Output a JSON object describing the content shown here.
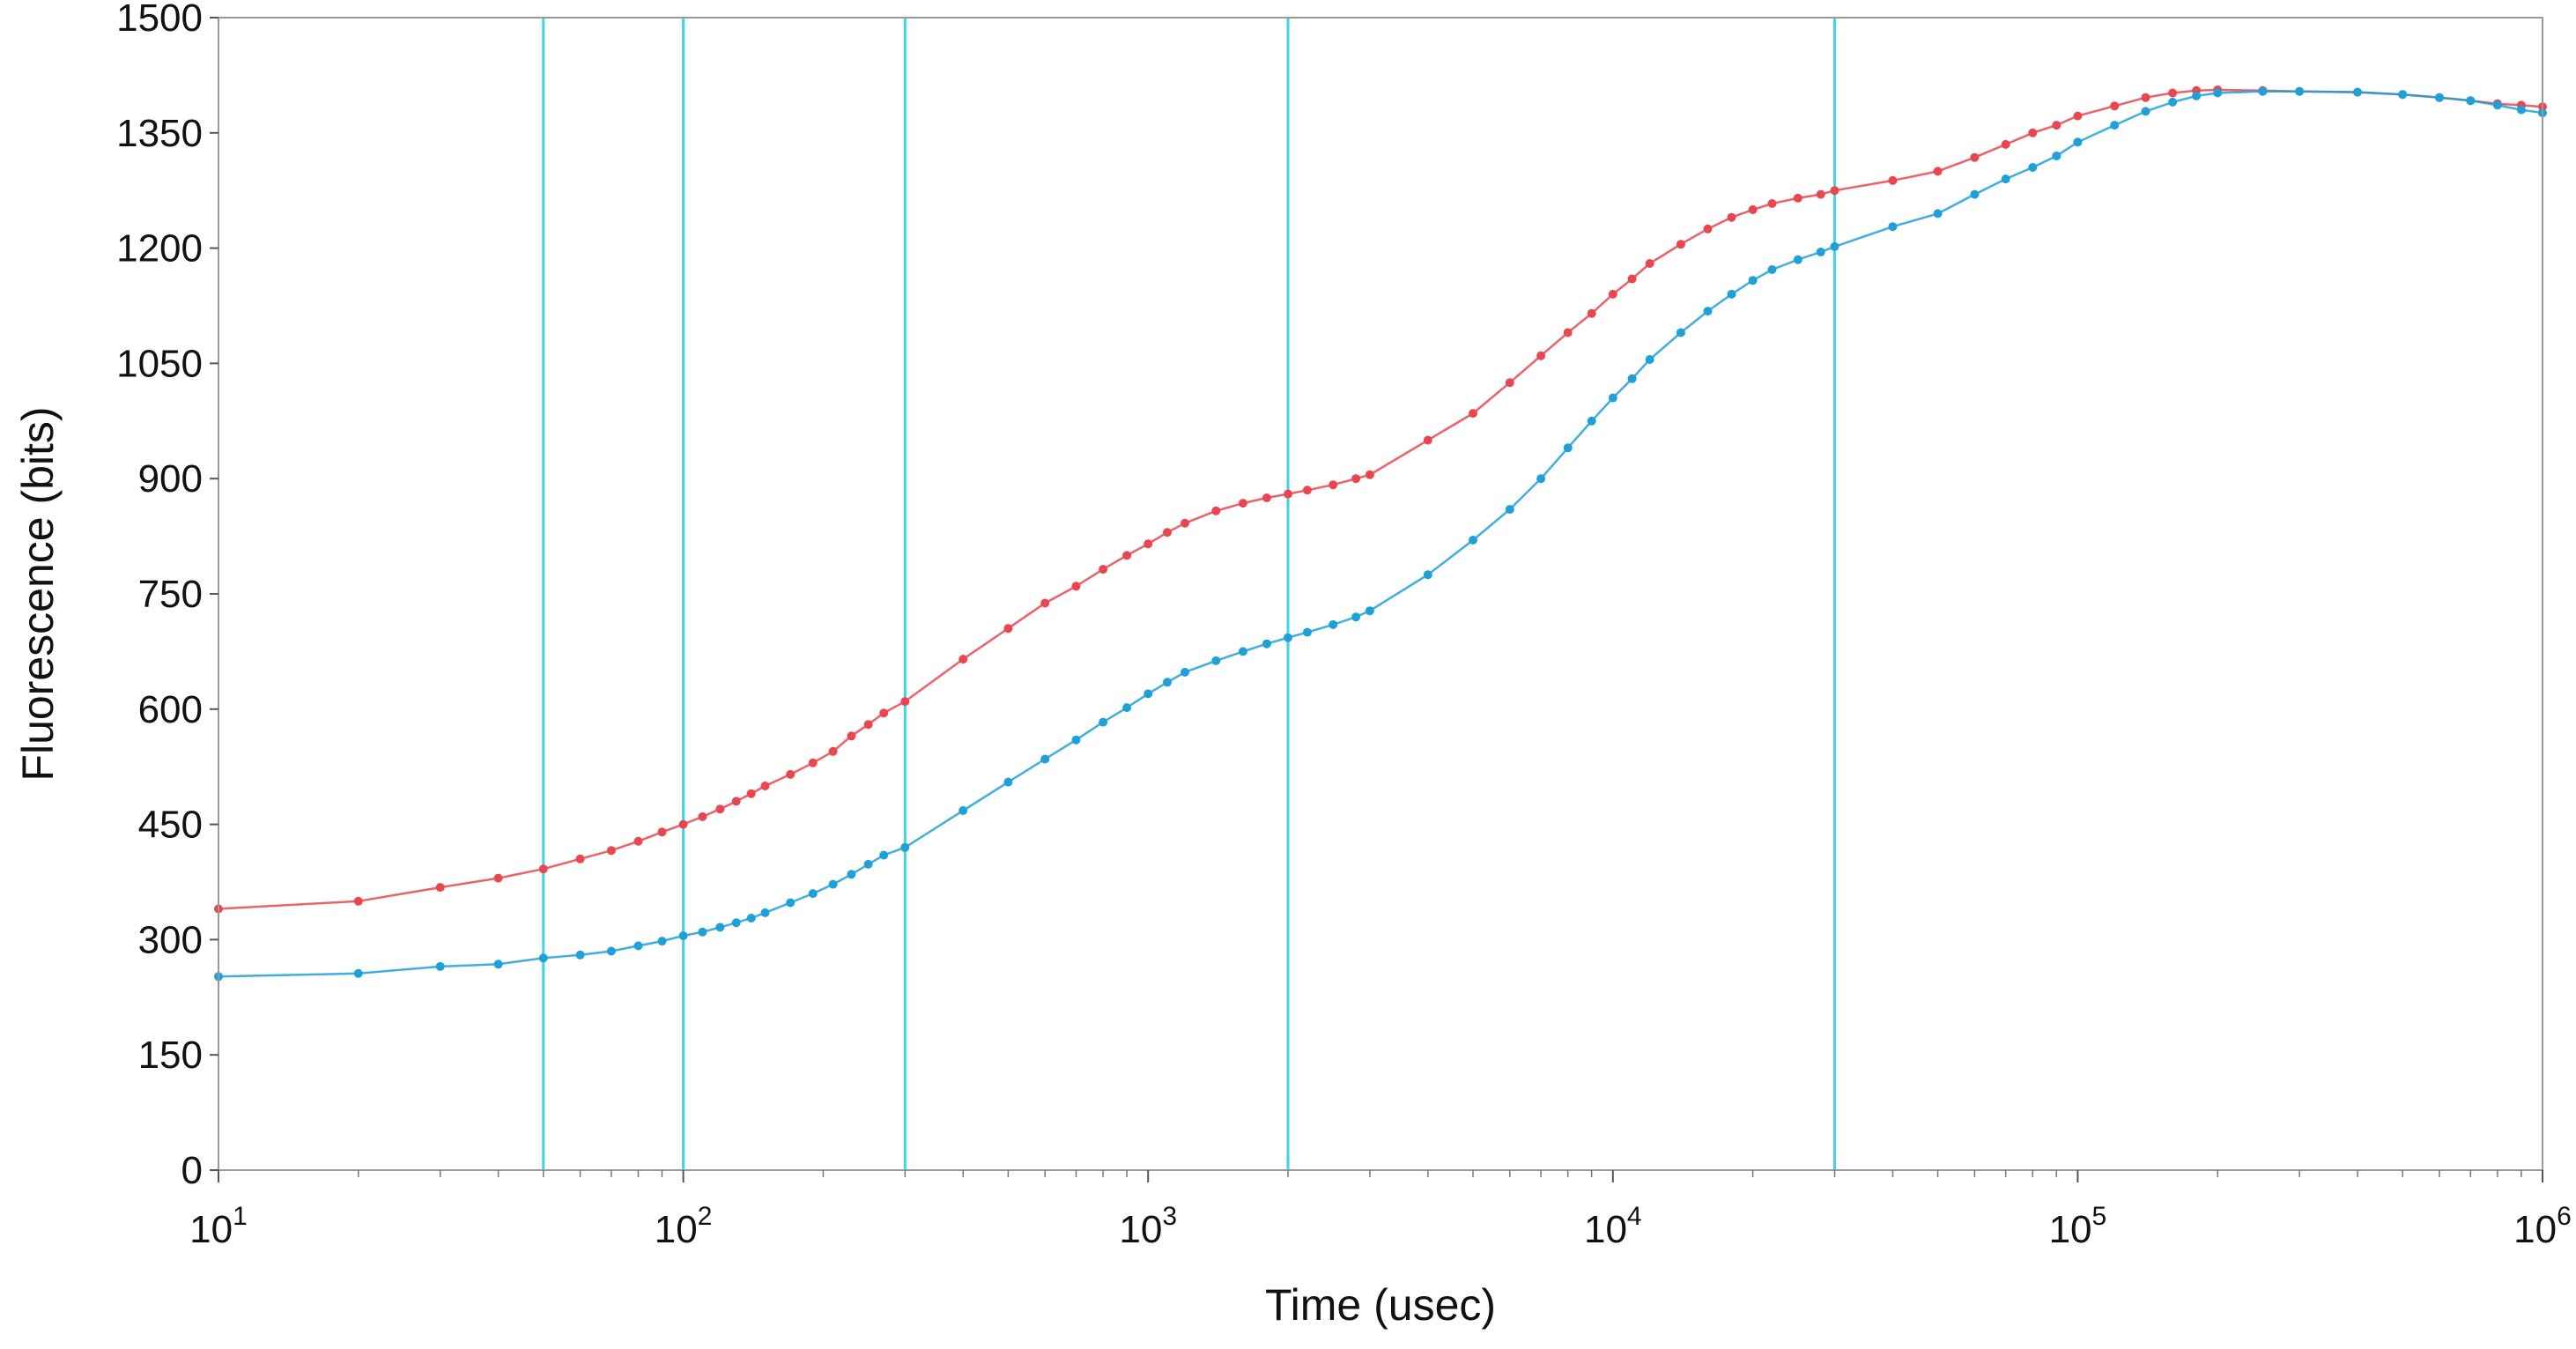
{
  "chart_data": {
    "type": "line",
    "xlabel": "Time (usec)",
    "ylabel": "Fluorescence (bits)",
    "x_scale": "log",
    "xlim": [
      10,
      1000000
    ],
    "ylim": [
      0,
      1500
    ],
    "x_ticks": [
      {
        "value": 10,
        "base": "10",
        "exp": "1"
      },
      {
        "value": 100,
        "base": "10",
        "exp": "2"
      },
      {
        "value": 1000,
        "base": "10",
        "exp": "3"
      },
      {
        "value": 10000,
        "base": "10",
        "exp": "4"
      },
      {
        "value": 100000,
        "base": "10",
        "exp": "5"
      },
      {
        "value": 1000000,
        "base": "10",
        "exp": "6"
      }
    ],
    "y_ticks": [
      "0",
      "150",
      "300",
      "450",
      "600",
      "750",
      "900",
      "1050",
      "1200",
      "1350",
      "1500"
    ],
    "grid": false,
    "vertical_markers": [
      50,
      100,
      300,
      2000,
      30000
    ],
    "colors": {
      "red": "#e8474f",
      "blue": "#1ea0d8",
      "markers": "#3fd4e8",
      "frame": "#999999"
    },
    "series": [
      {
        "color": "#e8474f",
        "x": [
          10,
          20,
          30,
          40,
          50,
          60,
          70,
          80,
          90,
          100,
          110,
          120,
          130,
          140,
          150,
          170,
          190,
          210,
          230,
          250,
          270,
          300,
          400,
          500,
          600,
          700,
          800,
          900,
          1000,
          1100,
          1200,
          1400,
          1600,
          1800,
          2000,
          2200,
          2500,
          2800,
          3000,
          4000,
          5000,
          6000,
          7000,
          8000,
          9000,
          10000,
          11000,
          12000,
          14000,
          16000,
          18000,
          20000,
          22000,
          25000,
          28000,
          30000,
          40000,
          50000,
          60000,
          70000,
          80000,
          90000,
          100000,
          120000,
          140000,
          160000,
          180000,
          200000,
          250000,
          300000,
          400000,
          500000,
          600000,
          700000,
          800000,
          900000,
          1000000
        ],
        "y": [
          340,
          350,
          368,
          380,
          392,
          405,
          416,
          428,
          440,
          450,
          460,
          470,
          480,
          490,
          500,
          515,
          530,
          545,
          565,
          580,
          595,
          610,
          665,
          705,
          738,
          760,
          782,
          800,
          815,
          830,
          842,
          858,
          868,
          875,
          880,
          885,
          892,
          900,
          905,
          950,
          985,
          1025,
          1060,
          1090,
          1115,
          1140,
          1160,
          1180,
          1205,
          1225,
          1240,
          1250,
          1258,
          1265,
          1270,
          1275,
          1288,
          1300,
          1318,
          1335,
          1350,
          1360,
          1372,
          1385,
          1396,
          1402,
          1405,
          1406,
          1405,
          1404,
          1403,
          1400,
          1396,
          1392,
          1388,
          1386,
          1384
        ]
      },
      {
        "color": "#1ea0d8",
        "x": [
          10,
          20,
          30,
          40,
          50,
          60,
          70,
          80,
          90,
          100,
          110,
          120,
          130,
          140,
          150,
          170,
          190,
          210,
          230,
          250,
          270,
          300,
          400,
          500,
          600,
          700,
          800,
          900,
          1000,
          1100,
          1200,
          1400,
          1600,
          1800,
          2000,
          2200,
          2500,
          2800,
          3000,
          4000,
          5000,
          6000,
          7000,
          8000,
          9000,
          10000,
          11000,
          12000,
          14000,
          16000,
          18000,
          20000,
          22000,
          25000,
          28000,
          30000,
          40000,
          50000,
          60000,
          70000,
          80000,
          90000,
          100000,
          120000,
          140000,
          160000,
          180000,
          200000,
          250000,
          300000,
          400000,
          500000,
          600000,
          700000,
          800000,
          900000,
          1000000
        ],
        "y": [
          252,
          256,
          265,
          268,
          276,
          280,
          285,
          292,
          298,
          305,
          310,
          316,
          322,
          328,
          335,
          348,
          360,
          372,
          385,
          398,
          410,
          420,
          468,
          505,
          535,
          560,
          583,
          602,
          620,
          635,
          648,
          663,
          675,
          685,
          693,
          700,
          710,
          720,
          728,
          775,
          820,
          860,
          900,
          940,
          975,
          1005,
          1030,
          1055,
          1090,
          1118,
          1140,
          1158,
          1172,
          1185,
          1195,
          1202,
          1228,
          1245,
          1270,
          1290,
          1305,
          1320,
          1338,
          1360,
          1378,
          1390,
          1398,
          1402,
          1404,
          1404,
          1403,
          1400,
          1396,
          1392,
          1386,
          1380,
          1376
        ]
      }
    ]
  }
}
